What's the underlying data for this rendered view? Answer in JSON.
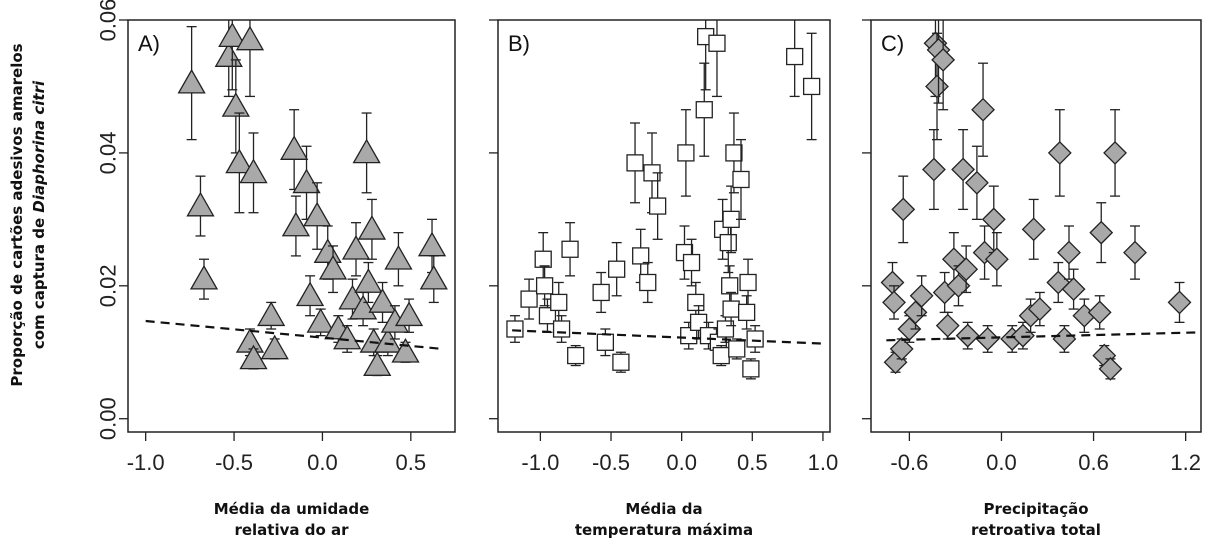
{
  "ylabel": {
    "line1": "Proporção de cartões adesivos amarelos",
    "line2_prefix": "com captura de ",
    "line2_italic": "Diaphorina citri"
  },
  "chart_data": [
    {
      "type": "scatter",
      "panel_label": "A)",
      "xlabel_lines": [
        "Média da umidade",
        "relativa do ar"
      ],
      "marker": "triangle",
      "marker_fill": "#a9a9a9",
      "xlim": [
        -1.1,
        0.75
      ],
      "ylim": [
        -0.002,
        0.06
      ],
      "x_ticks": [
        -1.0,
        -0.5,
        0.0,
        0.5
      ],
      "x_tick_labels": [
        "-1.0",
        "-0.5",
        "0.0",
        "0.5"
      ],
      "y_ticks": [
        0.0,
        0.02,
        0.04,
        0.06
      ],
      "y_tick_labels": [
        "0.00",
        "0.02",
        "0.04",
        "0.06"
      ],
      "trend": {
        "x": [
          -1.0,
          0.68
        ],
        "y": [
          0.0147,
          0.0105
        ]
      },
      "points": [
        {
          "x": -0.74,
          "y": 0.0505,
          "err": 0.0085
        },
        {
          "x": -0.69,
          "y": 0.032,
          "err": 0.0045
        },
        {
          "x": -0.67,
          "y": 0.021,
          "err": 0.003
        },
        {
          "x": -0.53,
          "y": 0.0545,
          "err": 0.006
        },
        {
          "x": -0.51,
          "y": 0.0575,
          "err": 0.008
        },
        {
          "x": -0.49,
          "y": 0.047,
          "err": 0.007
        },
        {
          "x": -0.47,
          "y": 0.0385,
          "err": 0.0075
        },
        {
          "x": -0.41,
          "y": 0.057,
          "err": 0.0085
        },
        {
          "x": -0.39,
          "y": 0.037,
          "err": 0.006
        },
        {
          "x": -0.41,
          "y": 0.0115,
          "err": 0.002
        },
        {
          "x": -0.39,
          "y": 0.009,
          "err": 0.0015
        },
        {
          "x": -0.29,
          "y": 0.0155,
          "err": 0.002
        },
        {
          "x": -0.27,
          "y": 0.0105,
          "err": 0.0015
        },
        {
          "x": -0.16,
          "y": 0.0405,
          "err": 0.006
        },
        {
          "x": -0.15,
          "y": 0.029,
          "err": 0.0045
        },
        {
          "x": -0.09,
          "y": 0.0355,
          "err": 0.0055
        },
        {
          "x": -0.07,
          "y": 0.0185,
          "err": 0.003
        },
        {
          "x": -0.03,
          "y": 0.0305,
          "err": 0.005
        },
        {
          "x": -0.01,
          "y": 0.0145,
          "err": 0.002
        },
        {
          "x": 0.03,
          "y": 0.025,
          "err": 0.004
        },
        {
          "x": 0.06,
          "y": 0.0225,
          "err": 0.0035
        },
        {
          "x": 0.09,
          "y": 0.0135,
          "err": 0.002
        },
        {
          "x": 0.14,
          "y": 0.012,
          "err": 0.002
        },
        {
          "x": 0.19,
          "y": 0.0255,
          "err": 0.004
        },
        {
          "x": 0.17,
          "y": 0.018,
          "err": 0.003
        },
        {
          "x": 0.23,
          "y": 0.0165,
          "err": 0.0025
        },
        {
          "x": 0.25,
          "y": 0.04,
          "err": 0.006
        },
        {
          "x": 0.26,
          "y": 0.0205,
          "err": 0.003
        },
        {
          "x": 0.28,
          "y": 0.0285,
          "err": 0.0045
        },
        {
          "x": 0.29,
          "y": 0.0115,
          "err": 0.002
        },
        {
          "x": 0.31,
          "y": 0.008,
          "err": 0.0015
        },
        {
          "x": 0.34,
          "y": 0.0175,
          "err": 0.003
        },
        {
          "x": 0.37,
          "y": 0.0115,
          "err": 0.002
        },
        {
          "x": 0.41,
          "y": 0.0145,
          "err": 0.0025
        },
        {
          "x": 0.43,
          "y": 0.024,
          "err": 0.004
        },
        {
          "x": 0.49,
          "y": 0.0155,
          "err": 0.0025
        },
        {
          "x": 0.47,
          "y": 0.01,
          "err": 0.0015
        },
        {
          "x": 0.62,
          "y": 0.026,
          "err": 0.004
        },
        {
          "x": 0.63,
          "y": 0.021,
          "err": 0.0035
        }
      ]
    },
    {
      "type": "scatter",
      "panel_label": "B)",
      "xlabel_lines": [
        "Média da",
        "temperatura máxima"
      ],
      "marker": "square",
      "marker_fill": "#ffffff",
      "xlim": [
        -1.3,
        1.05
      ],
      "ylim": [
        -0.002,
        0.06
      ],
      "x_ticks": [
        -1.0,
        -0.5,
        0.0,
        0.5,
        1.0
      ],
      "x_tick_labels": [
        "-1.0",
        "-0.5",
        "0.0",
        "0.5",
        "1.0"
      ],
      "y_ticks": [
        0.0,
        0.02,
        0.04,
        0.06
      ],
      "y_tick_labels": [],
      "trend": {
        "x": [
          -1.2,
          1.0
        ],
        "y": [
          0.0133,
          0.0113
        ]
      },
      "points": [
        {
          "x": -1.18,
          "y": 0.0135,
          "err": 0.002
        },
        {
          "x": -1.08,
          "y": 0.018,
          "err": 0.003
        },
        {
          "x": -0.98,
          "y": 0.024,
          "err": 0.004
        },
        {
          "x": -0.97,
          "y": 0.02,
          "err": 0.003
        },
        {
          "x": -0.95,
          "y": 0.0155,
          "err": 0.0025
        },
        {
          "x": -0.87,
          "y": 0.0175,
          "err": 0.003
        },
        {
          "x": -0.85,
          "y": 0.0135,
          "err": 0.002
        },
        {
          "x": -0.79,
          "y": 0.0255,
          "err": 0.004
        },
        {
          "x": -0.75,
          "y": 0.0095,
          "err": 0.0015
        },
        {
          "x": -0.57,
          "y": 0.019,
          "err": 0.003
        },
        {
          "x": -0.54,
          "y": 0.0115,
          "err": 0.002
        },
        {
          "x": -0.46,
          "y": 0.0225,
          "err": 0.004
        },
        {
          "x": -0.43,
          "y": 0.0085,
          "err": 0.0015
        },
        {
          "x": -0.33,
          "y": 0.0385,
          "err": 0.006
        },
        {
          "x": -0.29,
          "y": 0.0245,
          "err": 0.004
        },
        {
          "x": -0.24,
          "y": 0.0205,
          "err": 0.003
        },
        {
          "x": -0.21,
          "y": 0.037,
          "err": 0.006
        },
        {
          "x": -0.17,
          "y": 0.032,
          "err": 0.005
        },
        {
          "x": 0.03,
          "y": 0.04,
          "err": 0.0065
        },
        {
          "x": 0.02,
          "y": 0.025,
          "err": 0.004
        },
        {
          "x": 0.05,
          "y": 0.0125,
          "err": 0.002
        },
        {
          "x": 0.07,
          "y": 0.0235,
          "err": 0.0035
        },
        {
          "x": 0.1,
          "y": 0.0175,
          "err": 0.003
        },
        {
          "x": 0.12,
          "y": 0.0145,
          "err": 0.0025
        },
        {
          "x": 0.16,
          "y": 0.0465,
          "err": 0.007
        },
        {
          "x": 0.17,
          "y": 0.0575,
          "err": 0.008
        },
        {
          "x": 0.19,
          "y": 0.0125,
          "err": 0.002
        },
        {
          "x": 0.25,
          "y": 0.0565,
          "err": 0.008
        },
        {
          "x": 0.26,
          "y": 0.0115,
          "err": 0.002
        },
        {
          "x": 0.28,
          "y": 0.0095,
          "err": 0.0015
        },
        {
          "x": 0.29,
          "y": 0.0285,
          "err": 0.0045
        },
        {
          "x": 0.31,
          "y": 0.0135,
          "err": 0.002
        },
        {
          "x": 0.33,
          "y": 0.0265,
          "err": 0.0045
        },
        {
          "x": 0.34,
          "y": 0.02,
          "err": 0.003
        },
        {
          "x": 0.35,
          "y": 0.0165,
          "err": 0.0025
        },
        {
          "x": 0.35,
          "y": 0.03,
          "err": 0.005
        },
        {
          "x": 0.37,
          "y": 0.04,
          "err": 0.006
        },
        {
          "x": 0.39,
          "y": 0.0105,
          "err": 0.0015
        },
        {
          "x": 0.42,
          "y": 0.036,
          "err": 0.006
        },
        {
          "x": 0.47,
          "y": 0.0205,
          "err": 0.0035
        },
        {
          "x": 0.46,
          "y": 0.016,
          "err": 0.0025
        },
        {
          "x": 0.49,
          "y": 0.0075,
          "err": 0.0015
        },
        {
          "x": 0.52,
          "y": 0.012,
          "err": 0.002
        },
        {
          "x": 0.8,
          "y": 0.0545,
          "err": 0.006
        },
        {
          "x": 0.92,
          "y": 0.05,
          "err": 0.008
        }
      ]
    },
    {
      "type": "scatter",
      "panel_label": "C)",
      "xlabel_lines": [
        "Precipitação",
        "retroativa total"
      ],
      "marker": "diamond",
      "marker_fill": "#a9a9a9",
      "xlim": [
        -0.85,
        1.3
      ],
      "ylim": [
        -0.002,
        0.06
      ],
      "x_ticks": [
        -0.6,
        0.0,
        0.6,
        1.2
      ],
      "x_tick_labels": [
        "-0.6",
        "0.0",
        "0.6",
        "1.2"
      ],
      "y_ticks": [
        0.0,
        0.02,
        0.04,
        0.06
      ],
      "y_tick_labels": [],
      "trend": {
        "x": [
          -0.75,
          1.3
        ],
        "y": [
          0.0118,
          0.013
        ]
      },
      "points": [
        {
          "x": -0.71,
          "y": 0.0205,
          "err": 0.003
        },
        {
          "x": -0.7,
          "y": 0.0175,
          "err": 0.0025
        },
        {
          "x": -0.69,
          "y": 0.0085,
          "err": 0.0015
        },
        {
          "x": -0.64,
          "y": 0.0315,
          "err": 0.005
        },
        {
          "x": -0.65,
          "y": 0.0105,
          "err": 0.0015
        },
        {
          "x": -0.6,
          "y": 0.0135,
          "err": 0.002
        },
        {
          "x": -0.56,
          "y": 0.016,
          "err": 0.0025
        },
        {
          "x": -0.52,
          "y": 0.0185,
          "err": 0.003
        },
        {
          "x": -0.44,
          "y": 0.0375,
          "err": 0.006
        },
        {
          "x": -0.43,
          "y": 0.0565,
          "err": 0.008
        },
        {
          "x": -0.42,
          "y": 0.05,
          "err": 0.008
        },
        {
          "x": -0.41,
          "y": 0.0555,
          "err": 0.008
        },
        {
          "x": -0.38,
          "y": 0.054,
          "err": 0.0075
        },
        {
          "x": -0.37,
          "y": 0.019,
          "err": 0.003
        },
        {
          "x": -0.35,
          "y": 0.014,
          "err": 0.002
        },
        {
          "x": -0.31,
          "y": 0.024,
          "err": 0.004
        },
        {
          "x": -0.28,
          "y": 0.02,
          "err": 0.003
        },
        {
          "x": -0.25,
          "y": 0.0375,
          "err": 0.006
        },
        {
          "x": -0.23,
          "y": 0.0225,
          "err": 0.0035
        },
        {
          "x": -0.22,
          "y": 0.0125,
          "err": 0.002
        },
        {
          "x": -0.16,
          "y": 0.0355,
          "err": 0.0055
        },
        {
          "x": -0.12,
          "y": 0.0465,
          "err": 0.007
        },
        {
          "x": -0.11,
          "y": 0.025,
          "err": 0.004
        },
        {
          "x": -0.09,
          "y": 0.012,
          "err": 0.002
        },
        {
          "x": -0.05,
          "y": 0.03,
          "err": 0.005
        },
        {
          "x": -0.03,
          "y": 0.024,
          "err": 0.004
        },
        {
          "x": 0.07,
          "y": 0.012,
          "err": 0.002
        },
        {
          "x": 0.14,
          "y": 0.0125,
          "err": 0.002
        },
        {
          "x": 0.19,
          "y": 0.0155,
          "err": 0.0025
        },
        {
          "x": 0.21,
          "y": 0.0285,
          "err": 0.0045
        },
        {
          "x": 0.25,
          "y": 0.0165,
          "err": 0.0025
        },
        {
          "x": 0.37,
          "y": 0.0205,
          "err": 0.003
        },
        {
          "x": 0.38,
          "y": 0.04,
          "err": 0.0065
        },
        {
          "x": 0.41,
          "y": 0.012,
          "err": 0.002
        },
        {
          "x": 0.44,
          "y": 0.025,
          "err": 0.004
        },
        {
          "x": 0.47,
          "y": 0.0195,
          "err": 0.003
        },
        {
          "x": 0.54,
          "y": 0.0155,
          "err": 0.0025
        },
        {
          "x": 0.64,
          "y": 0.016,
          "err": 0.0025
        },
        {
          "x": 0.65,
          "y": 0.028,
          "err": 0.0045
        },
        {
          "x": 0.67,
          "y": 0.0095,
          "err": 0.0015
        },
        {
          "x": 0.71,
          "y": 0.0075,
          "err": 0.0015
        },
        {
          "x": 0.74,
          "y": 0.04,
          "err": 0.0065
        },
        {
          "x": 0.87,
          "y": 0.025,
          "err": 0.004
        },
        {
          "x": 1.16,
          "y": 0.0175,
          "err": 0.003
        }
      ]
    }
  ]
}
